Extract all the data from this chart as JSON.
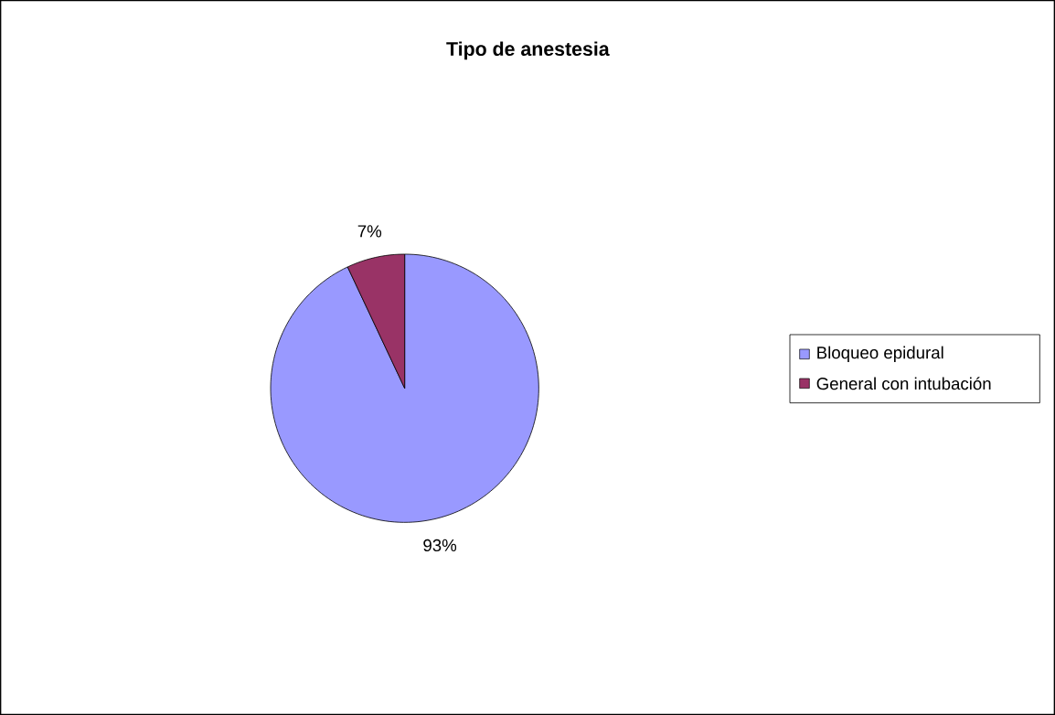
{
  "chart_data": {
    "type": "pie",
    "title": "Tipo de anestesia",
    "categories": [
      "Bloqueo epidural",
      "General con intubación"
    ],
    "values": [
      93,
      7
    ],
    "colors": [
      "#9999ff",
      "#993366"
    ],
    "value_labels": [
      "93%",
      "7%"
    ],
    "legend": "right"
  }
}
